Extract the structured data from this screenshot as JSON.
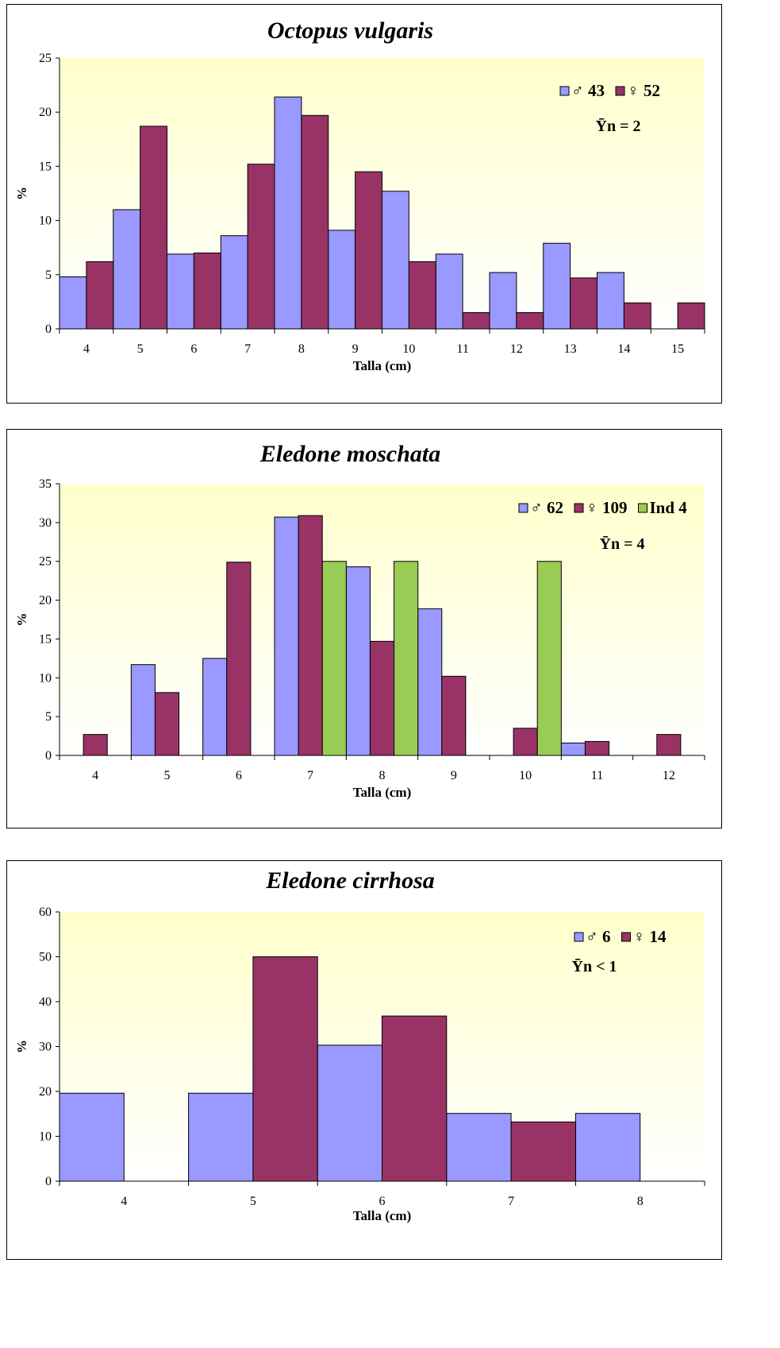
{
  "colors": {
    "male": "#9999ff",
    "female": "#993366",
    "indeterminate": "#99cc55",
    "plot_gradient_top": "#ffffcc",
    "plot_gradient_bottom": "#ffffff"
  },
  "chart_data": [
    {
      "type": "bar",
      "title": "Octopus vulgaris",
      "xlabel": "Talla (cm)",
      "ylabel": "%",
      "ylim": [
        0,
        25
      ],
      "yticks": [
        0,
        5,
        10,
        15,
        20,
        25
      ],
      "grid": false,
      "categories": [
        "4",
        "5",
        "6",
        "7",
        "8",
        "9",
        "10",
        "11",
        "12",
        "13",
        "14",
        "15"
      ],
      "series": [
        {
          "key": "male",
          "values": [
            4.8,
            11.0,
            6.9,
            8.6,
            21.4,
            9.1,
            12.7,
            6.9,
            5.2,
            7.9,
            5.2,
            0
          ]
        },
        {
          "key": "female",
          "values": [
            6.2,
            18.7,
            7.0,
            15.2,
            19.7,
            14.5,
            6.2,
            1.5,
            1.5,
            4.7,
            2.4,
            2.4
          ]
        }
      ],
      "legend": [
        {
          "key": "male",
          "label": "♂ 43"
        },
        {
          "key": "female",
          "label": "♀ 52"
        }
      ],
      "annotation": "Ȳn = 2",
      "legend_position": "top-right"
    },
    {
      "type": "bar",
      "title": "Eledone moschata",
      "xlabel": "Talla (cm)",
      "ylabel": "%",
      "ylim": [
        0,
        35
      ],
      "yticks": [
        0,
        5,
        10,
        15,
        20,
        25,
        30,
        35
      ],
      "grid": false,
      "categories": [
        "4",
        "5",
        "6",
        "7",
        "8",
        "9",
        "10",
        "11",
        "12"
      ],
      "series": [
        {
          "key": "male",
          "values": [
            0,
            11.7,
            12.5,
            30.7,
            24.3,
            18.9,
            0,
            1.6,
            0
          ]
        },
        {
          "key": "female",
          "values": [
            2.7,
            8.1,
            24.9,
            30.9,
            14.7,
            10.2,
            3.5,
            1.8,
            2.7
          ]
        },
        {
          "key": "indeterminate",
          "values": [
            0,
            0,
            0,
            25,
            25,
            0,
            25,
            0,
            0
          ]
        }
      ],
      "legend": [
        {
          "key": "male",
          "label": "♂ 62"
        },
        {
          "key": "female",
          "label": "♀ 109"
        },
        {
          "key": "indeterminate",
          "label": "Ind 4"
        }
      ],
      "annotation": "Ȳn = 4",
      "legend_position": "top-right"
    },
    {
      "type": "bar",
      "title": "Eledone cirrhosa",
      "xlabel": "Talla (cm)",
      "ylabel": "%",
      "ylim": [
        0,
        60
      ],
      "yticks": [
        0,
        10,
        20,
        30,
        40,
        50,
        60
      ],
      "grid": false,
      "categories": [
        "4",
        "5",
        "6",
        "7",
        "8"
      ],
      "series": [
        {
          "key": "male",
          "values": [
            19.6,
            19.6,
            30.3,
            15.1,
            15.1
          ]
        },
        {
          "key": "female",
          "values": [
            0,
            50.0,
            36.8,
            13.2,
            0
          ]
        }
      ],
      "legend": [
        {
          "key": "male",
          "label": "♂ 6"
        },
        {
          "key": "female",
          "label": "♀ 14"
        }
      ],
      "annotation": "Ȳn < 1",
      "legend_position": "top-right"
    }
  ]
}
